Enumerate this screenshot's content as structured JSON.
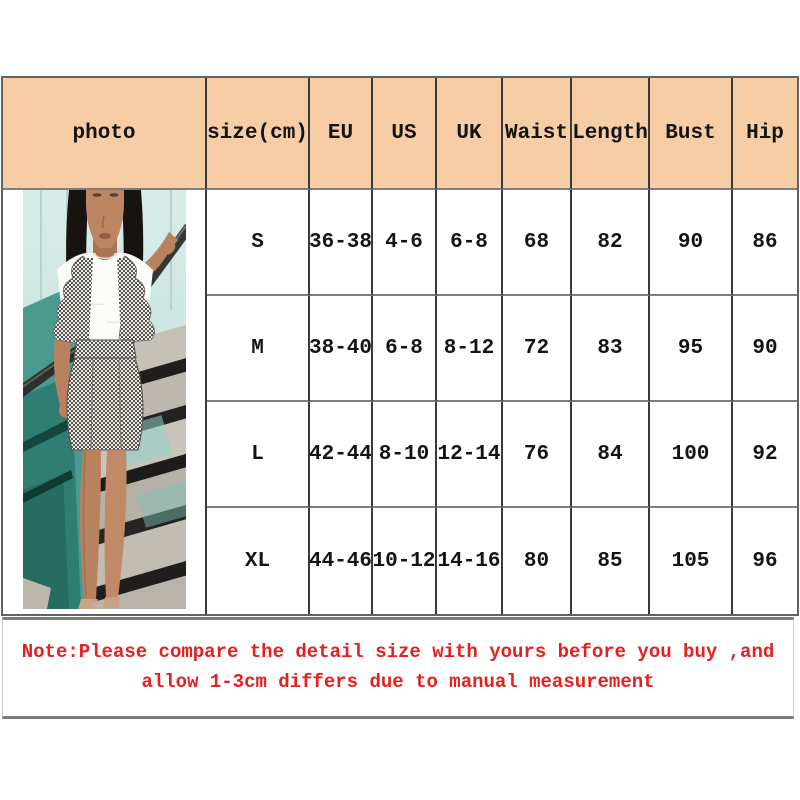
{
  "table": {
    "columns": [
      "photo",
      "size(cm)",
      "EU",
      "US",
      "UK",
      "Waist",
      "Length",
      "Bust",
      "Hip"
    ],
    "rows": [
      [
        "S",
        "36-38",
        "4-6",
        "6-8",
        "68",
        "82",
        "90",
        "86"
      ],
      [
        "M",
        "38-40",
        "6-8",
        "8-12",
        "72",
        "83",
        "95",
        "90"
      ],
      [
        "L",
        "42-44",
        "8-10",
        "12-14",
        "76",
        "84",
        "100",
        "92"
      ],
      [
        "XL",
        "44-46",
        "10-12",
        "14-16",
        "80",
        "85",
        "105",
        "96"
      ]
    ]
  },
  "note": {
    "line1": "Note:Please compare the detail size with yours before you buy ,and",
    "line2": "allow 1-3cm differs due to manual measurement"
  },
  "photo": {
    "alt": "Model in white short-sleeve t-shirt and grey houndstooth ruffle suspender skirt standing on a staircase with teal glass panels"
  },
  "colors": {
    "header_bg": "#f7cda6",
    "note_red": "#e5201e",
    "grid_vertical": "#3a3a3a",
    "grid_horizontal": "#7d7d7d",
    "text": "#141414"
  }
}
